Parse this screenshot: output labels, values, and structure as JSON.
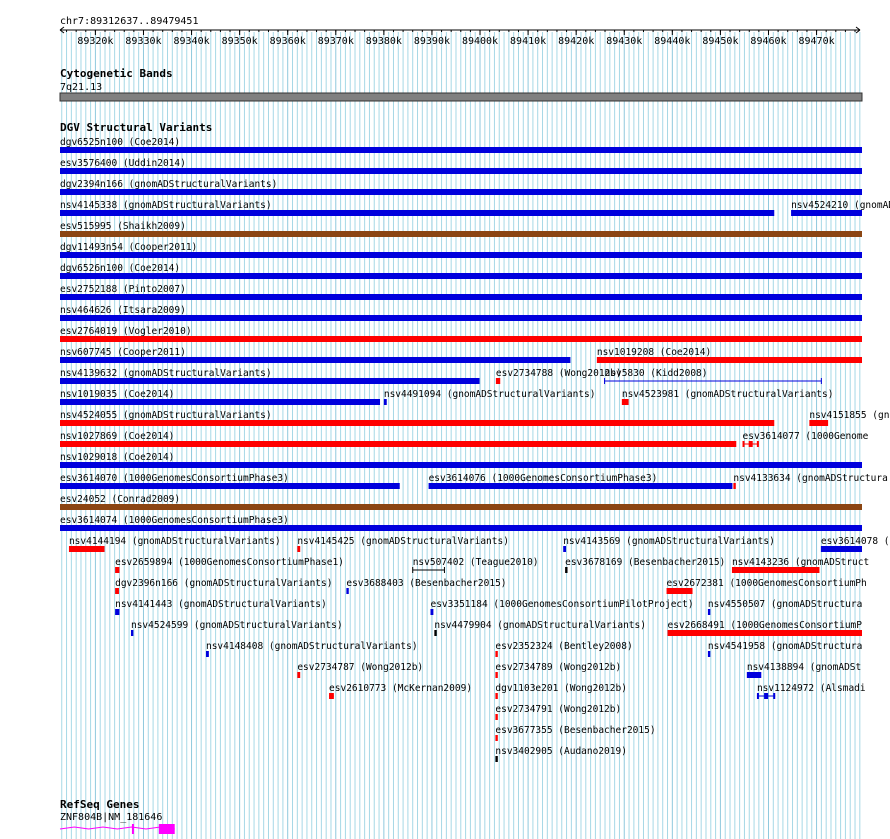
{
  "region": {
    "label": "chr7:89312637..89479451",
    "start": 89312637,
    "end": 89479451
  },
  "ruler_ticks": [
    "89320k",
    "89330k",
    "89340k",
    "89350k",
    "89360k",
    "89370k",
    "89380k",
    "89390k",
    "89400k",
    "89410k",
    "89420k",
    "89430k",
    "89440k",
    "89450k",
    "89460k",
    "89470k"
  ],
  "colors": {
    "blue": "#0000dd",
    "red": "#ff0000",
    "brown": "#8b4513",
    "black": "#000000",
    "magenta": "#ff00ff",
    "grid": "#a6d8e6",
    "band": "#808080"
  },
  "tracks": {
    "cytoband": {
      "title": "Cytogenetic Bands",
      "band_label": "7q21.13"
    },
    "dgv": {
      "title": "DGV Structural Variants",
      "features": [
        {
          "label": "dgv6525n100 (Coe2014)",
          "start": 89312637,
          "end": 89479451,
          "color": "blue",
          "row": 0
        },
        {
          "label": "esv3576400 (Uddin2014)",
          "start": 89312637,
          "end": 89479451,
          "color": "blue",
          "row": 1
        },
        {
          "label": "dgv2394n166 (gnomADStructuralVariants)",
          "start": 89312637,
          "end": 89479451,
          "color": "blue",
          "row": 2
        },
        {
          "label": "nsv4145338 (gnomADStructuralVariants)",
          "start": 89312637,
          "end": 89461200,
          "color": "blue",
          "row": 3
        },
        {
          "label": "nsv4524210 (gnomAD",
          "start": 89464700,
          "end": 89479451,
          "color": "blue",
          "row": 3
        },
        {
          "label": "esv515995 (Shaikh2009)",
          "start": 89312637,
          "end": 89479451,
          "color": "brown",
          "row": 4
        },
        {
          "label": "dgv11493n54 (Cooper2011)",
          "start": 89312637,
          "end": 89479451,
          "color": "blue",
          "row": 5
        },
        {
          "label": "dgv6526n100 (Coe2014)",
          "start": 89312637,
          "end": 89479451,
          "color": "blue",
          "row": 6
        },
        {
          "label": "esv2752188 (Pinto2007)",
          "start": 89312637,
          "end": 89479451,
          "color": "blue",
          "row": 7
        },
        {
          "label": "nsv464626 (Itsara2009)",
          "start": 89312637,
          "end": 89479451,
          "color": "blue",
          "row": 8
        },
        {
          "label": "esv2764019 (Vogler2010)",
          "start": 89312637,
          "end": 89479451,
          "color": "red",
          "row": 9
        },
        {
          "label": "nsv607745 (Cooper2011)",
          "start": 89312637,
          "end": 89418800,
          "color": "blue",
          "row": 10
        },
        {
          "label": "nsv1019208 (Coe2014)",
          "start": 89424300,
          "end": 89479451,
          "color": "red",
          "row": 10
        },
        {
          "label": "nsv4139632 (gnomADStructuralVariants)",
          "start": 89312637,
          "end": 89399900,
          "color": "blue",
          "row": 11
        },
        {
          "label": "esv2734788 (Wong2012b)",
          "start": 89403300,
          "end": 89404200,
          "color": "red",
          "row": 11
        },
        {
          "label": "nsv5830 (Kidd2008)",
          "start": 89425900,
          "end": 89471000,
          "color": "blue",
          "row": 11,
          "style": "line"
        },
        {
          "label": "nsv1019035 (Coe2014)",
          "start": 89312637,
          "end": 89379200,
          "color": "blue",
          "row": 12
        },
        {
          "label": "nsv4491094 (gnomADStructuralVariants)",
          "start": 89380000,
          "end": 89380600,
          "color": "blue",
          "row": 12
        },
        {
          "label": "nsv4523981 (gnomADStructuralVariants)",
          "start": 89429500,
          "end": 89430900,
          "color": "red",
          "row": 12
        },
        {
          "label": "nsv4524055 (gnomADStructuralVariants)",
          "start": 89312637,
          "end": 89461200,
          "color": "red",
          "row": 13
        },
        {
          "label": "nsv4151855 (gno",
          "start": 89468500,
          "end": 89472400,
          "color": "red",
          "row": 13
        },
        {
          "label": "nsv1027869 (Coe2014)",
          "start": 89312637,
          "end": 89453300,
          "color": "red",
          "row": 14
        },
        {
          "label": "esv3614077 (1000Genome",
          "start": 89454600,
          "end": 89458000,
          "color": "red",
          "row": 14,
          "style": "line-blocks"
        },
        {
          "label": "nsv1029018 (Coe2014)",
          "start": 89312637,
          "end": 89479451,
          "color": "blue",
          "row": 15
        },
        {
          "label": "esv3614070 (1000GenomesConsortiumPhase3)",
          "start": 89312637,
          "end": 89383300,
          "color": "blue",
          "row": 16
        },
        {
          "label": "esv3614076 (1000GenomesConsortiumPhase3)",
          "start": 89389300,
          "end": 89452500,
          "color": "blue",
          "row": 16
        },
        {
          "label": "nsv4133634 (gnomADStructura",
          "start": 89452700,
          "end": 89453200,
          "color": "red",
          "row": 16
        },
        {
          "label": "esv24052 (Conrad2009)",
          "start": 89312637,
          "end": 89479451,
          "color": "brown",
          "row": 17
        },
        {
          "label": "esv3614074 (1000GenomesConsortiumPhase3)",
          "start": 89312637,
          "end": 89479451,
          "color": "blue",
          "row": 18
        },
        {
          "label": "nsv4144194 (gnomADStructuralVariants)",
          "start": 89314500,
          "end": 89321900,
          "color": "red",
          "row": 19
        },
        {
          "label": "nsv4145425 (gnomADStructuralVariants)",
          "start": 89362000,
          "end": 89362600,
          "color": "red",
          "row": 19
        },
        {
          "label": "nsv4143569 (gnomADStructuralVariants)",
          "start": 89417300,
          "end": 89417900,
          "color": "blue",
          "row": 19
        },
        {
          "label": "esv3614078 (1",
          "start": 89470900,
          "end": 89479451,
          "color": "blue",
          "row": 19
        },
        {
          "label": "esv2659894 (1000GenomesConsortiumPhase1)",
          "start": 89324100,
          "end": 89325000,
          "color": "red",
          "row": 20
        },
        {
          "label": "nsv507402 (Teague2010)",
          "start": 89386000,
          "end": 89392600,
          "color": "black",
          "row": 20,
          "style": "line"
        },
        {
          "label": "esv3678169 (Besenbacher2015)",
          "start": 89417700,
          "end": 89418200,
          "color": "black",
          "row": 20
        },
        {
          "label": "nsv4143236 (gnomADStruct",
          "start": 89452400,
          "end": 89470600,
          "color": "red",
          "row": 20
        },
        {
          "label": "dgv2396n166 (gnomADStructuralVariants)",
          "start": 89324100,
          "end": 89324900,
          "color": "red",
          "row": 21
        },
        {
          "label": "esv3688403 (Besenbacher2015)",
          "start": 89372200,
          "end": 89372700,
          "color": "blue",
          "row": 21
        },
        {
          "label": "esv2672381 (1000GenomesConsortiumPh",
          "start": 89438800,
          "end": 89444200,
          "color": "red",
          "row": 21
        },
        {
          "label": "nsv4141443 (gnomADStructuralVariants)",
          "start": 89324100,
          "end": 89325000,
          "color": "blue",
          "row": 22
        },
        {
          "label": "esv3351184 (1000GenomesConsortiumPilotProject)",
          "start": 89389700,
          "end": 89390300,
          "color": "blue",
          "row": 22
        },
        {
          "label": "nsv4550507 (gnomADStructura",
          "start": 89447400,
          "end": 89447900,
          "color": "blue",
          "row": 22
        },
        {
          "label": "nsv4524599 (gnomADStructuralVariants)",
          "start": 89327400,
          "end": 89327900,
          "color": "blue",
          "row": 23
        },
        {
          "label": "nsv4479904 (gnomADStructuralVariants)",
          "start": 89390500,
          "end": 89391000,
          "color": "black",
          "row": 23
        },
        {
          "label": "esv2668491 (1000GenomesConsortiumP",
          "start": 89439000,
          "end": 89479451,
          "color": "red",
          "row": 23
        },
        {
          "label": "nsv4148408 (gnomADStructuralVariants)",
          "start": 89343000,
          "end": 89343600,
          "color": "blue",
          "row": 24
        },
        {
          "label": "esv2352324 (Bentley2008)",
          "start": 89403200,
          "end": 89403700,
          "color": "red",
          "row": 24
        },
        {
          "label": "nsv4541958 (gnomADStructura",
          "start": 89447400,
          "end": 89447900,
          "color": "blue",
          "row": 24
        },
        {
          "label": "esv2734787 (Wong2012b)",
          "start": 89362000,
          "end": 89362600,
          "color": "red",
          "row": 25
        },
        {
          "label": "esv2734789 (Wong2012b)",
          "start": 89403200,
          "end": 89403700,
          "color": "red",
          "row": 25
        },
        {
          "label": "nsv4138894 (gnomADSt",
          "start": 89455500,
          "end": 89458500,
          "color": "blue",
          "row": 25
        },
        {
          "label": "esv2610773 (McKernan2009)",
          "start": 89368600,
          "end": 89369600,
          "color": "red",
          "row": 26,
          "style": "line-blocks"
        },
        {
          "label": "dgv1103e201 (Wong2012b)",
          "start": 89403200,
          "end": 89403700,
          "color": "red",
          "row": 26
        },
        {
          "label": "nsv1124972 (Alsmadi",
          "start": 89457600,
          "end": 89461400,
          "color": "blue",
          "row": 26,
          "style": "line-blocks"
        },
        {
          "label": "esv2734791 (Wong2012b)",
          "start": 89403200,
          "end": 89403700,
          "color": "red",
          "row": 27
        },
        {
          "label": "esv3677355 (Besenbacher2015)",
          "start": 89403200,
          "end": 89403700,
          "color": "red",
          "row": 28
        },
        {
          "label": "nsv3402905 (Audano2019)",
          "start": 89403200,
          "end": 89403700,
          "color": "black",
          "row": 29
        }
      ]
    },
    "refseq": {
      "title": "RefSeq Genes",
      "gene_label": "ZNF804B|NM_181646",
      "start": 89312637,
      "end": 89336500,
      "exons": [
        [
          89327600,
          89328000
        ],
        [
          89333200,
          89336500
        ]
      ]
    }
  }
}
